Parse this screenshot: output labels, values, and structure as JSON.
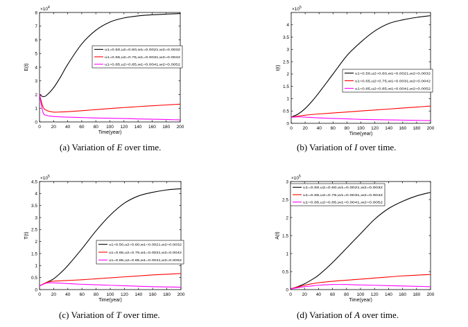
{
  "chart_data": [
    {
      "type": "line",
      "ylabel": "E(t)",
      "xlabel": "Time(year)",
      "exponent": "10",
      "exponent_power": "4",
      "caption": "(a) Variation of E over time.",
      "caption_prefix": "(a) Variation of ",
      "caption_var": "E",
      "caption_suffix": " over time.",
      "xlim": [
        0,
        200
      ],
      "ylim": [
        0,
        8
      ],
      "xticks": [
        "0",
        "20",
        "40",
        "60",
        "80",
        "100",
        "120",
        "140",
        "160",
        "180",
        "200"
      ],
      "yticks": [
        "0",
        "1",
        "2",
        "3",
        "4",
        "5",
        "6",
        "7",
        "8"
      ],
      "legend_position": "center-right",
      "series": [
        {
          "name": "u1=0.50,u2=0.60,w1=0.0021,w2=0.0032",
          "color": "#000000",
          "x": [
            0,
            5,
            10,
            20,
            30,
            40,
            60,
            80,
            100,
            120,
            140,
            160,
            180,
            200
          ],
          "y": [
            2.0,
            1.85,
            1.95,
            2.5,
            3.3,
            4.2,
            5.7,
            6.7,
            7.3,
            7.6,
            7.75,
            7.83,
            7.88,
            7.92
          ]
        },
        {
          "name": "u1=0.65,u2=0.75,w1=0.0031,w2=0.0042",
          "color": "#ff0000",
          "x": [
            0,
            5,
            10,
            20,
            30,
            40,
            60,
            80,
            100,
            120,
            140,
            160,
            180,
            200
          ],
          "y": [
            2.0,
            1.1,
            0.85,
            0.72,
            0.73,
            0.75,
            0.82,
            0.9,
            0.98,
            1.05,
            1.12,
            1.18,
            1.24,
            1.3
          ]
        },
        {
          "name": "u1=0.85,u2=0.85,w1=0.0041,w2=0.0052",
          "color": "#ff00ff",
          "x": [
            0,
            5,
            10,
            20,
            30,
            40,
            60,
            80,
            100,
            120,
            140,
            160,
            180,
            200
          ],
          "y": [
            2.0,
            0.7,
            0.48,
            0.4,
            0.37,
            0.35,
            0.32,
            0.29,
            0.27,
            0.25,
            0.22,
            0.2,
            0.18,
            0.15
          ]
        }
      ]
    },
    {
      "type": "line",
      "ylabel": "I(t)",
      "xlabel": "Time(year)",
      "exponent": "10",
      "exponent_power": "5",
      "caption": "(b) Variation of I over time.",
      "caption_prefix": "(b) Variation of ",
      "caption_var": "I",
      "caption_suffix": " over time.",
      "xlim": [
        0,
        200
      ],
      "ylim": [
        0,
        4.5
      ],
      "xticks": [
        "0",
        "20",
        "40",
        "60",
        "80",
        "100",
        "120",
        "140",
        "160",
        "180",
        "200"
      ],
      "yticks": [
        "0",
        "0.5",
        "1",
        "1.5",
        "2",
        "2.5",
        "3",
        "3.5",
        "4"
      ],
      "legend_position": "center-right",
      "series": [
        {
          "name": "u1=0.50,u2=0.60,w1=0.0021,w2=0.0032",
          "color": "#000000",
          "x": [
            0,
            10,
            20,
            30,
            40,
            60,
            80,
            100,
            120,
            140,
            160,
            180,
            200
          ],
          "y": [
            0.25,
            0.38,
            0.6,
            0.9,
            1.25,
            2.0,
            2.75,
            3.3,
            3.75,
            4.05,
            4.2,
            4.3,
            4.37
          ]
        },
        {
          "name": "u1=0.65,u2=0.75,w1=0.0031,w2=0.0042",
          "color": "#ff0000",
          "x": [
            0,
            20,
            40,
            60,
            80,
            100,
            120,
            140,
            160,
            180,
            200
          ],
          "y": [
            0.25,
            0.33,
            0.38,
            0.42,
            0.46,
            0.5,
            0.54,
            0.58,
            0.62,
            0.66,
            0.7
          ]
        },
        {
          "name": "u1=0.85,u2=0.85,w1=0.0041,w2=0.0052",
          "color": "#ff00ff",
          "x": [
            0,
            10,
            20,
            40,
            60,
            80,
            100,
            120,
            140,
            160,
            180,
            200
          ],
          "y": [
            0.25,
            0.26,
            0.25,
            0.22,
            0.2,
            0.18,
            0.16,
            0.15,
            0.14,
            0.13,
            0.12,
            0.11
          ]
        }
      ]
    },
    {
      "type": "line",
      "ylabel": "T(t)",
      "xlabel": "Time(year)",
      "exponent": "10",
      "exponent_power": "5",
      "caption": "(c) Variation of T over time.",
      "caption_prefix": "(c) Variation of ",
      "caption_var": "T",
      "caption_suffix": " over time.",
      "xlim": [
        0,
        200
      ],
      "ylim": [
        0,
        4.5
      ],
      "xticks": [
        "0",
        "20",
        "40",
        "60",
        "80",
        "100",
        "120",
        "140",
        "160",
        "180",
        "200"
      ],
      "yticks": [
        "0",
        "0.5",
        "1",
        "1.5",
        "2",
        "2.5",
        "3",
        "3.5",
        "4",
        "4.5"
      ],
      "legend_position": "center-right",
      "series": [
        {
          "name": "u1=0.50,u2=0.60,w1=0.0021,w2=0.0032",
          "color": "#000000",
          "x": [
            0,
            10,
            20,
            30,
            40,
            60,
            80,
            100,
            120,
            140,
            160,
            180,
            200
          ],
          "y": [
            0.15,
            0.3,
            0.45,
            0.7,
            1.0,
            1.7,
            2.45,
            3.1,
            3.6,
            3.9,
            4.05,
            4.15,
            4.2
          ]
        },
        {
          "name": "u1=0.65,u2=0.75,w1=0.0031,w2=0.0042",
          "color": "#ff0000",
          "x": [
            0,
            10,
            20,
            40,
            60,
            80,
            100,
            120,
            140,
            160,
            180,
            200
          ],
          "y": [
            0.15,
            0.3,
            0.35,
            0.38,
            0.41,
            0.45,
            0.49,
            0.53,
            0.57,
            0.61,
            0.64,
            0.67
          ]
        },
        {
          "name": "u1=0.85,u2=0.85,w1=0.0041,w2=0.0052",
          "color": "#ff00ff",
          "x": [
            0,
            10,
            20,
            30,
            40,
            60,
            80,
            100,
            120,
            140,
            160,
            180,
            200
          ],
          "y": [
            0.15,
            0.27,
            0.28,
            0.27,
            0.25,
            0.22,
            0.2,
            0.18,
            0.16,
            0.14,
            0.12,
            0.11,
            0.1
          ]
        }
      ]
    },
    {
      "type": "line",
      "ylabel": "A(t)",
      "xlabel": "Time(year)",
      "exponent": "10",
      "exponent_power": "5",
      "caption": "(d) Variation of A over time.",
      "caption_prefix": "(d) Variation of ",
      "caption_var": "A",
      "caption_suffix": " over time.",
      "xlim": [
        0,
        200
      ],
      "ylim": [
        0,
        3
      ],
      "xticks": [
        "0",
        "20",
        "40",
        "60",
        "80",
        "100",
        "120",
        "140",
        "160",
        "180",
        "200"
      ],
      "yticks": [
        "0",
        "0.5",
        "1",
        "1.5",
        "2",
        "2.5",
        "3"
      ],
      "legend_position": "top-left",
      "series": [
        {
          "name": "u1=0.50,u2=0.60,w1=0.0021,w2=0.0032",
          "color": "#000000",
          "x": [
            0,
            10,
            20,
            30,
            40,
            60,
            80,
            100,
            120,
            140,
            160,
            180,
            200
          ],
          "y": [
            0.02,
            0.08,
            0.16,
            0.27,
            0.4,
            0.75,
            1.15,
            1.55,
            1.95,
            2.25,
            2.45,
            2.6,
            2.7
          ]
        },
        {
          "name": "u1=0.65,u2=0.75,w1=0.0031,w2=0.0042",
          "color": "#ff0000",
          "x": [
            0,
            10,
            20,
            30,
            40,
            60,
            80,
            100,
            120,
            140,
            160,
            180,
            200
          ],
          "y": [
            0.02,
            0.07,
            0.12,
            0.16,
            0.19,
            0.23,
            0.26,
            0.29,
            0.32,
            0.35,
            0.38,
            0.4,
            0.42
          ]
        },
        {
          "name": "u1=0.85,u2=0.85,w1=0.0041,w2=0.0052",
          "color": "#ff00ff",
          "x": [
            0,
            10,
            20,
            30,
            40,
            60,
            80,
            100,
            120,
            140,
            160,
            180,
            200
          ],
          "y": [
            0.02,
            0.05,
            0.08,
            0.1,
            0.12,
            0.14,
            0.14,
            0.13,
            0.12,
            0.11,
            0.1,
            0.09,
            0.08
          ]
        }
      ]
    }
  ]
}
